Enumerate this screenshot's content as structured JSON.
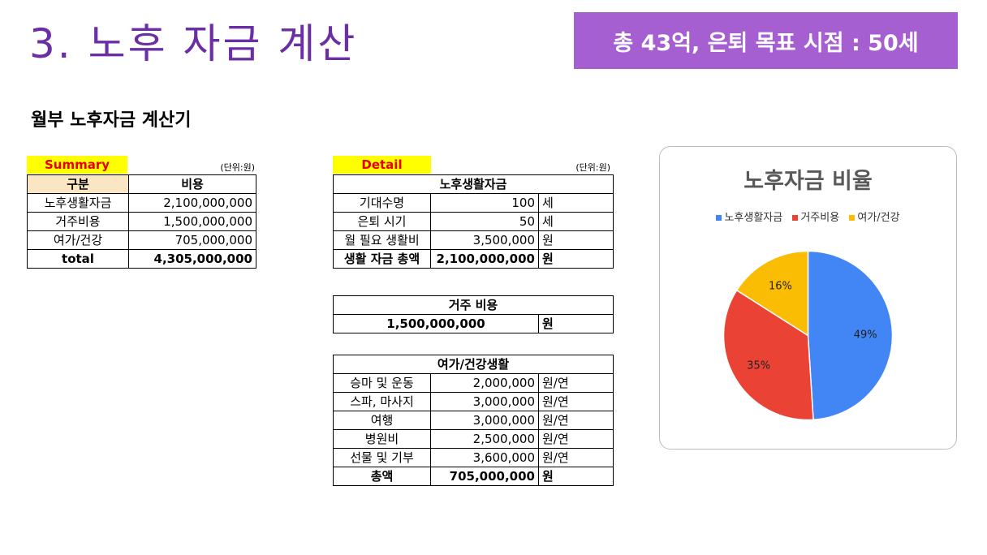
{
  "header": {
    "title": "3. 노후 자금 계산",
    "badge": "총 43억, 은퇴 목표 시점  : 50세"
  },
  "subtitle": "월부 노후자금 계산기",
  "summary": {
    "tag": "Summary",
    "unit": "(단위:원)",
    "columns": [
      "구분",
      "비용"
    ],
    "rows": [
      {
        "label": "노후생활자금",
        "value": "2,100,000,000"
      },
      {
        "label": "거주비용",
        "value": "1,500,000,000"
      },
      {
        "label": "여가/건강",
        "value": "705,000,000"
      }
    ],
    "total": {
      "label": "total",
      "value": "4,305,000,000"
    }
  },
  "detail": {
    "tag": "Detail",
    "unit": "(단위:원)",
    "living": {
      "header": "노후생활자금",
      "rows": [
        {
          "label": "기대수명",
          "value": "100",
          "unit": "세"
        },
        {
          "label": "은퇴 시기",
          "value": "50",
          "unit": "세"
        },
        {
          "label": "월 필요 생활비",
          "value": "3,500,000",
          "unit": "원"
        }
      ],
      "total": {
        "label": "생활 자금 총액",
        "value": "2,100,000,000",
        "unit": "원"
      }
    },
    "housing": {
      "header": "거주 비용",
      "value": "1,500,000,000",
      "unit": "원"
    },
    "leisure": {
      "header": "여가/건강생활",
      "rows": [
        {
          "label": "승마 및 운동",
          "value": "2,000,000",
          "unit": "원/연"
        },
        {
          "label": "스파, 마사지",
          "value": "3,000,000",
          "unit": "원/연"
        },
        {
          "label": "여행",
          "value": "3,000,000",
          "unit": "원/연"
        },
        {
          "label": "병원비",
          "value": "2,500,000",
          "unit": "원/연"
        },
        {
          "label": "선물 및 기부",
          "value": "3,600,000",
          "unit": "원/연"
        }
      ],
      "total": {
        "label": "총액",
        "value": "705,000,000",
        "unit": "원"
      }
    }
  },
  "chart_data": {
    "type": "pie",
    "title": "노후자금 비율",
    "legend_position": "top",
    "categories": [
      "노후생활자금",
      "거주비용",
      "여가/건강"
    ],
    "values": [
      49,
      35,
      16
    ],
    "labels": [
      "49%",
      "35%",
      "16%"
    ],
    "colors": [
      "#4285f4",
      "#ea4335",
      "#fbbc04"
    ]
  }
}
